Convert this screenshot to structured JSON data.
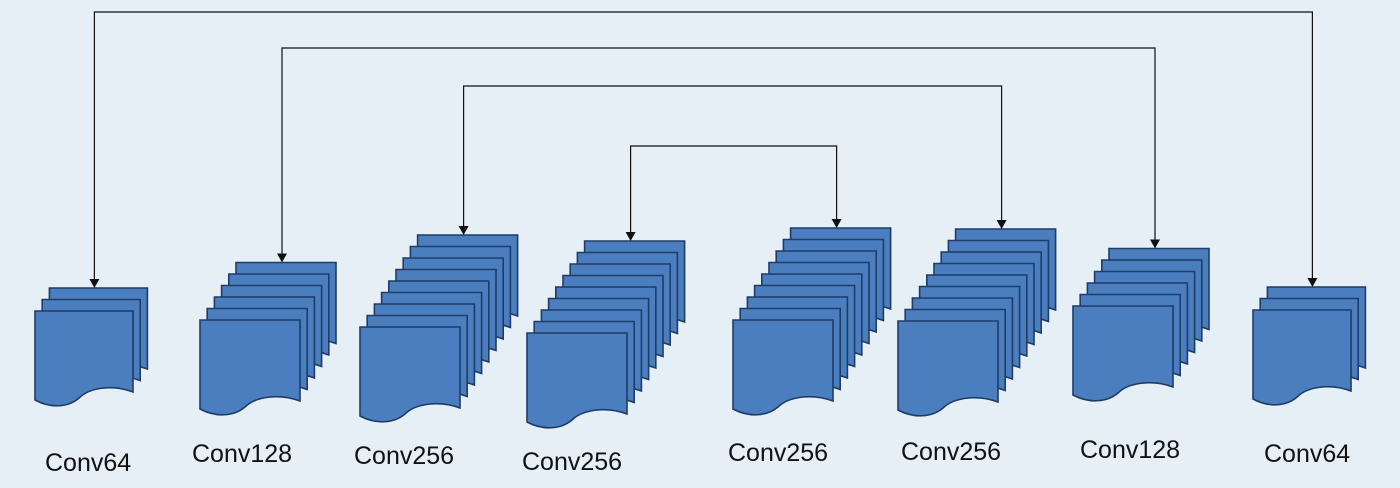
{
  "colors": {
    "background": "#e6eef6",
    "sheet_fill": "#4a7ebf",
    "sheet_stroke": "#1f3c66",
    "connector": "#111111"
  },
  "blocks": [
    {
      "label": "Conv64",
      "sheets": 3
    },
    {
      "label": "Conv128",
      "sheets": 6
    },
    {
      "label": "Conv256",
      "sheets": 9
    },
    {
      "label": "Conv256",
      "sheets": 9
    },
    {
      "label": "Conv256",
      "sheets": 9
    },
    {
      "label": "Conv256",
      "sheets": 9
    },
    {
      "label": "Conv128",
      "sheets": 6
    },
    {
      "label": "Conv64",
      "sheets": 3
    }
  ],
  "skip_connections": [
    {
      "from": 0,
      "to": 7
    },
    {
      "from": 1,
      "to": 6
    },
    {
      "from": 2,
      "to": 5
    },
    {
      "from": 3,
      "to": 4
    }
  ]
}
